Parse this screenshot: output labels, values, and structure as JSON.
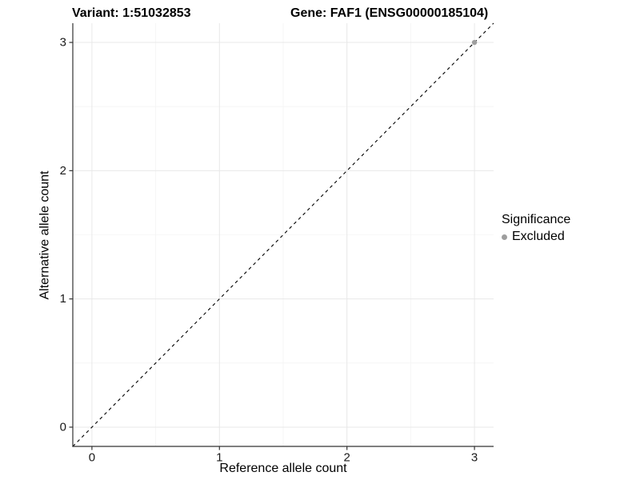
{
  "chart_data": {
    "type": "scatter",
    "title_left": "Variant: 1:51032853",
    "title_right": "Gene: FAF1 (ENSG00000185104)",
    "xlabel": "Reference allele count",
    "ylabel": "Alternative allele count",
    "xlim": [
      -0.15,
      3.15
    ],
    "ylim": [
      -0.15,
      3.15
    ],
    "x_ticks": [
      0,
      1,
      2,
      3
    ],
    "y_ticks": [
      0,
      1,
      2,
      3
    ],
    "x_minor_ticks": [
      0.5,
      1.5,
      2.5
    ],
    "y_minor_ticks": [
      0.5,
      1.5,
      2.5
    ],
    "grid": "major+minor",
    "reference_line": {
      "slope": 1,
      "intercept": 0,
      "linetype": "dashed",
      "color": "#000000"
    },
    "series": [
      {
        "name": "Excluded",
        "color": "#9e9e9e",
        "points": [
          {
            "x": 3,
            "y": 3
          }
        ]
      }
    ],
    "legend": {
      "title": "Significance",
      "position": "right",
      "entries": [
        {
          "label": "Excluded",
          "color": "#9e9e9e"
        }
      ]
    }
  },
  "colors": {
    "background": "#ffffff",
    "grid_major": "#e8e8e8",
    "grid_minor": "#f4f4f4",
    "axis_line": "#333333",
    "tick_mark": "#333333",
    "tick_text": "#1a1a1a"
  }
}
